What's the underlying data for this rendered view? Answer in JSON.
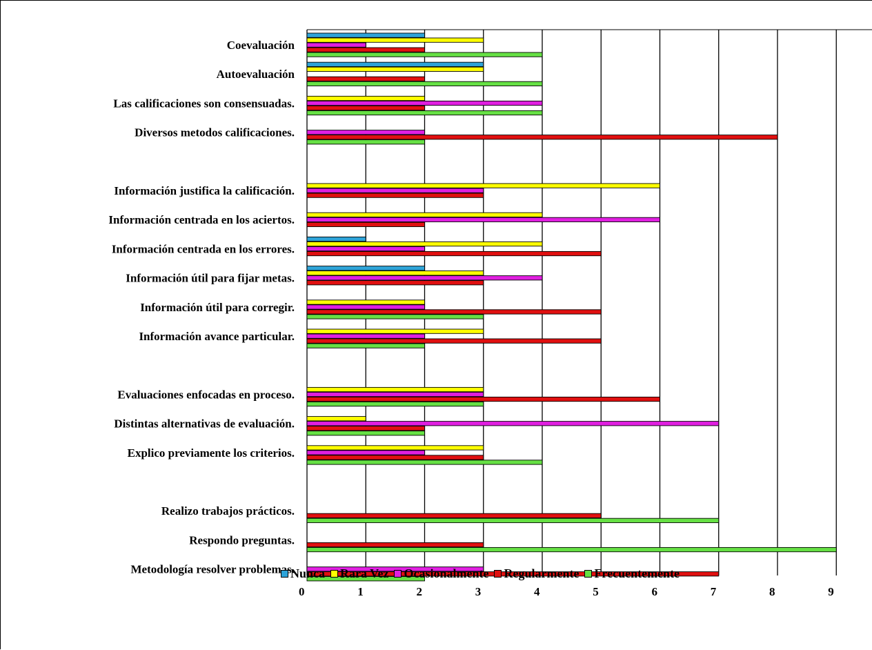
{
  "chart_data": {
    "type": "bar",
    "orientation": "horizontal",
    "title": "",
    "xlabel": "",
    "ylabel": "",
    "xlim": [
      0,
      9.6
    ],
    "xticks": [
      0,
      1,
      2,
      3,
      4,
      5,
      6,
      7,
      8,
      9
    ],
    "grid": "vertical",
    "legend_position": "bottom",
    "series": [
      {
        "name": "Nunca",
        "color": "#2ea3d8"
      },
      {
        "name": "Rara Vez",
        "color": "#ffff00"
      },
      {
        "name": "Ocasionalmente",
        "color": "#e01fe0"
      },
      {
        "name": "Regularmente",
        "color": "#e01010"
      },
      {
        "name": "Frecuentemente",
        "color": "#66e044"
      }
    ],
    "categories": [
      {
        "label": "Coevaluación",
        "values": [
          2,
          3,
          1,
          2,
          4
        ]
      },
      {
        "label": "Autoevaluación",
        "values": [
          3,
          3,
          0,
          2,
          4
        ]
      },
      {
        "label": "Las calificaciones son consensuadas.",
        "values": [
          0,
          2,
          4,
          2,
          4
        ]
      },
      {
        "label": "Diversos metodos calificaciones.",
        "values": [
          0,
          0,
          2,
          8,
          2
        ]
      },
      {
        "label": "",
        "values": [
          0,
          0,
          0,
          0,
          0
        ]
      },
      {
        "label": "Información justifica la calificación.",
        "values": [
          0,
          6,
          3,
          3,
          0
        ]
      },
      {
        "label": "Información centrada en los aciertos.",
        "values": [
          0,
          4,
          6,
          2,
          0
        ]
      },
      {
        "label": "Información centrada en los errores.",
        "values": [
          1,
          4,
          2,
          5,
          0
        ]
      },
      {
        "label": "Información útil para fijar metas.",
        "values": [
          2,
          3,
          4,
          3,
          0
        ]
      },
      {
        "label": "Información útil para corregir.",
        "values": [
          0,
          2,
          2,
          5,
          3
        ]
      },
      {
        "label": "Información avance particular.",
        "values": [
          0,
          3,
          2,
          5,
          2
        ]
      },
      {
        "label": "",
        "values": [
          0,
          0,
          0,
          0,
          0
        ]
      },
      {
        "label": "Evaluaciones enfocadas en proceso.",
        "values": [
          0,
          3,
          3,
          6,
          3
        ]
      },
      {
        "label": "Distintas alternativas de evaluación.",
        "values": [
          0,
          1,
          7,
          2,
          2
        ]
      },
      {
        "label": "Explico previamente los criterios.",
        "values": [
          0,
          3,
          2,
          3,
          4
        ]
      },
      {
        "label": "",
        "values": [
          0,
          0,
          0,
          0,
          0
        ]
      },
      {
        "label": "Realizo trabajos prácticos.",
        "values": [
          0,
          0,
          0,
          5,
          7
        ]
      },
      {
        "label": "Respondo preguntas.",
        "values": [
          0,
          0,
          0,
          3,
          9
        ]
      },
      {
        "label": "Metodología resolver problemas.",
        "values": [
          0,
          0,
          3,
          7,
          2
        ]
      }
    ]
  }
}
